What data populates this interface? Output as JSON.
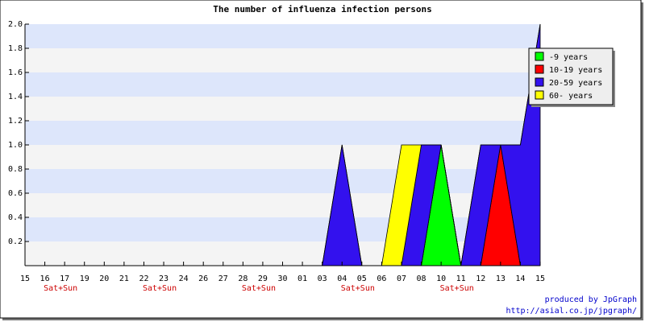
{
  "chart_data": {
    "type": "stacked_area",
    "title": "The number of influenza infection persons",
    "categories": [
      "15",
      "16",
      "17",
      "19",
      "20",
      "21",
      "22",
      "23",
      "24",
      "26",
      "27",
      "28",
      "29",
      "30",
      "01",
      "03",
      "04",
      "05",
      "06",
      "07",
      "08",
      "10",
      "11",
      "12",
      "13",
      "14",
      "15"
    ],
    "category_notes": [
      null,
      null,
      "Sat+Sun",
      null,
      null,
      null,
      null,
      "Sat+Sun",
      null,
      null,
      null,
      null,
      "Sat+Sun",
      null,
      null,
      null,
      null,
      "Sat+Sun",
      null,
      null,
      null,
      null,
      "Sat+Sun",
      null,
      null,
      null,
      null
    ],
    "series": [
      {
        "name": "-9 years",
        "color": "#00ff00",
        "values": [
          0,
          0,
          0,
          0,
          0,
          0,
          0,
          0,
          0,
          0,
          0,
          0,
          0,
          0,
          0,
          0,
          0,
          0,
          0,
          0,
          0,
          1,
          0,
          0,
          0,
          0,
          0
        ]
      },
      {
        "name": "10-19 years",
        "color": "#ff0000",
        "values": [
          0,
          0,
          0,
          0,
          0,
          0,
          0,
          0,
          0,
          0,
          0,
          0,
          0,
          0,
          0,
          0,
          0,
          0,
          0,
          0,
          0,
          0,
          0,
          0,
          1,
          0,
          0
        ]
      },
      {
        "name": "20-59 years",
        "color": "#3311ee",
        "values": [
          0,
          0,
          0,
          0,
          0,
          0,
          0,
          0,
          0,
          0,
          0,
          0,
          0,
          0,
          0,
          0,
          1,
          0,
          0,
          0,
          1,
          0,
          0,
          1,
          0,
          1,
          2
        ]
      },
      {
        "name": "60- years",
        "color": "#ffff00",
        "values": [
          0,
          0,
          0,
          0,
          0,
          0,
          0,
          0,
          0,
          0,
          0,
          0,
          0,
          0,
          0,
          0,
          0,
          0,
          0,
          1,
          0,
          0,
          0,
          0,
          0,
          0,
          0
        ]
      }
    ],
    "ylim": [
      0,
      2
    ],
    "yticks": [
      0.2,
      0.4,
      0.6,
      0.8,
      {
        "value": 1,
        "label": "1.0"
      },
      1.2,
      1.4,
      1.6,
      1.8,
      {
        "value": 2,
        "label": "2.0"
      }
    ],
    "band_colors": [
      "#dde6fb",
      "#f4f4f4"
    ],
    "legend": "top-right",
    "footer": [
      "produced by JpGraph",
      "http://asial.co.jp/jpgraph/"
    ]
  }
}
